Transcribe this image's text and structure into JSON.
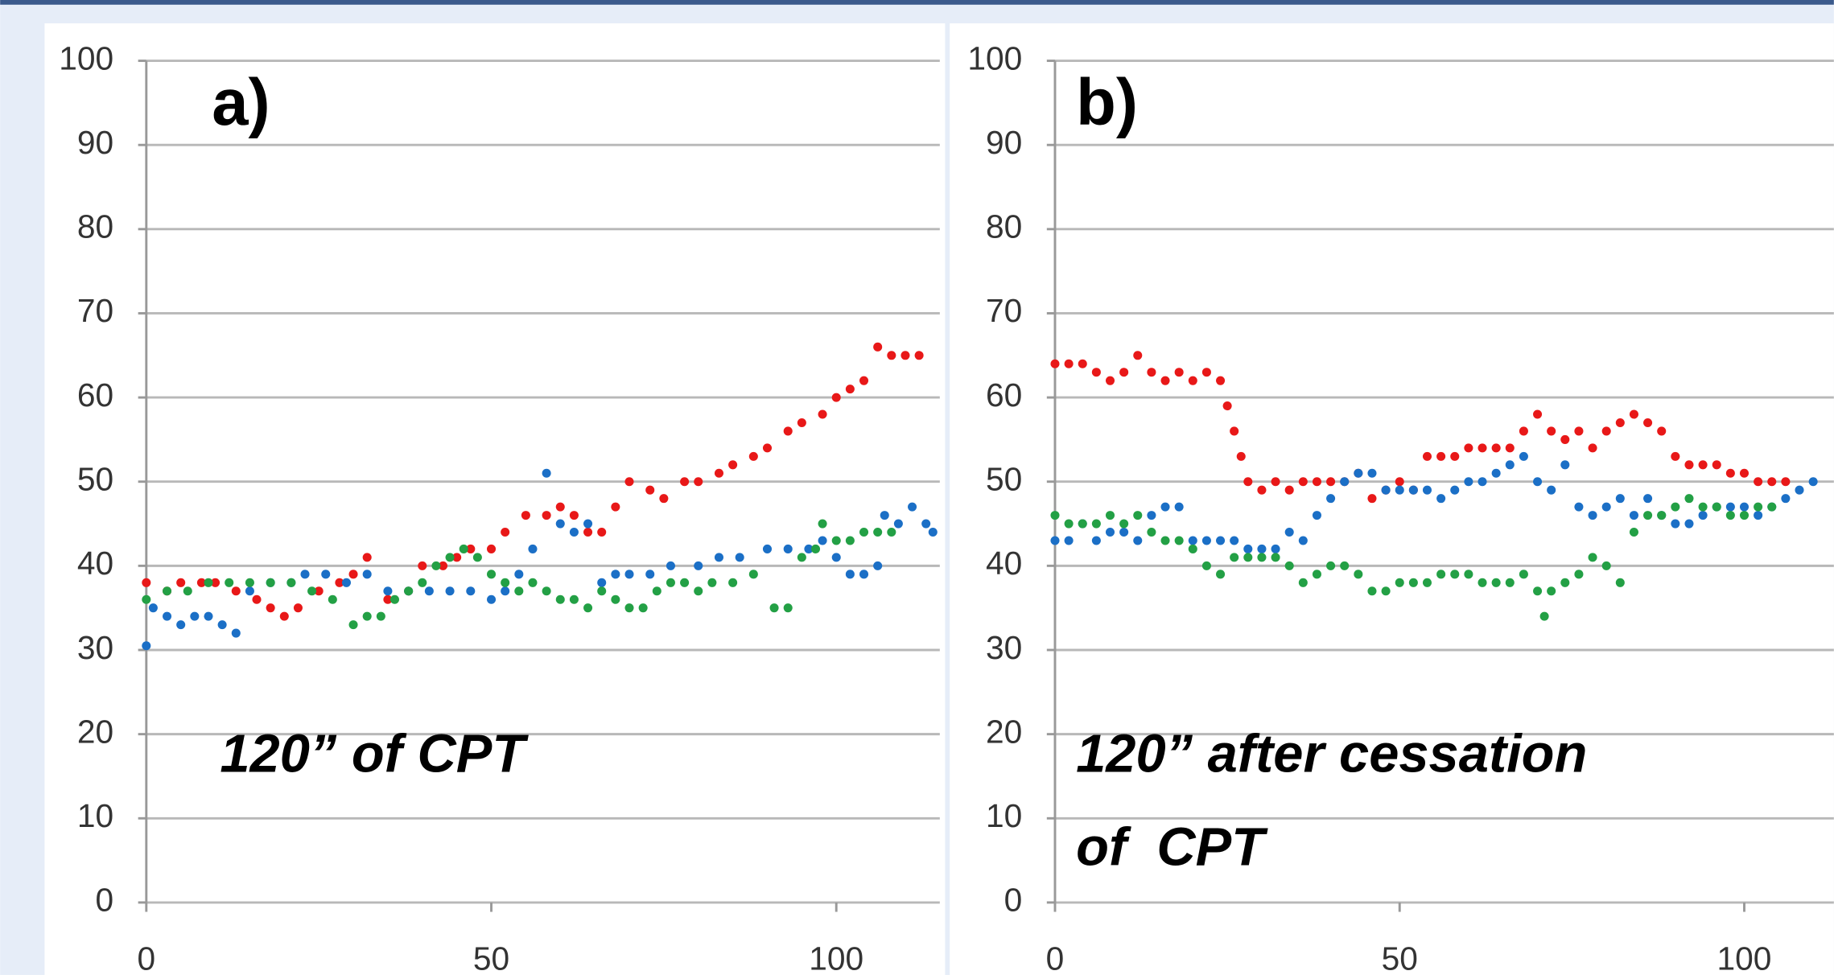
{
  "chart_data": [
    {
      "type": "scatter",
      "label": "a)",
      "note": [
        "120” of CPT"
      ],
      "xlim": [
        0,
        115
      ],
      "ylim": [
        0,
        100
      ],
      "xticks": [
        0,
        50,
        100
      ],
      "yticks": [
        0,
        10,
        20,
        30,
        40,
        50,
        60,
        70,
        80,
        90,
        100
      ],
      "grid": true,
      "series": [
        {
          "color": "#e81818",
          "x": [
            0,
            3,
            5,
            8,
            10,
            13,
            16,
            18,
            20,
            22,
            25,
            28,
            30,
            32,
            35,
            38,
            40,
            43,
            45,
            47,
            50,
            52,
            55,
            58,
            60,
            62,
            64,
            66,
            68,
            70,
            73,
            75,
            78,
            80,
            83,
            85,
            88,
            90,
            93,
            95,
            98,
            100,
            102,
            104,
            106,
            108,
            110,
            112
          ],
          "values": [
            38,
            37,
            38,
            38,
            38,
            37,
            36,
            35,
            34,
            35,
            37,
            38,
            39,
            41,
            36,
            37,
            40,
            40,
            41,
            42,
            42,
            44,
            46,
            46,
            47,
            46,
            44,
            44,
            47,
            50,
            49,
            48,
            50,
            50,
            51,
            52,
            53,
            54,
            56,
            57,
            58,
            60,
            61,
            62,
            66,
            65,
            65,
            65
          ]
        },
        {
          "color": "#1b6fc6",
          "x": [
            0,
            1,
            3,
            5,
            7,
            9,
            11,
            13,
            15,
            18,
            21,
            23,
            26,
            29,
            32,
            35,
            38,
            41,
            44,
            47,
            50,
            52,
            54,
            56,
            58,
            60,
            62,
            64,
            66,
            68,
            70,
            73,
            76,
            80,
            83,
            86,
            90,
            93,
            96,
            98,
            100,
            102,
            104,
            106,
            107,
            109,
            111,
            113,
            114
          ],
          "values": [
            30.5,
            35,
            34,
            33,
            34,
            34,
            33,
            32,
            37,
            38,
            38,
            39,
            39,
            38,
            39,
            37,
            37,
            37,
            37,
            37,
            36,
            37,
            39,
            42,
            51,
            45,
            44,
            45,
            38,
            39,
            39,
            39,
            40,
            40,
            41,
            41,
            42,
            42,
            42,
            43,
            41,
            39,
            39,
            40,
            46,
            45,
            47,
            45,
            44
          ]
        },
        {
          "color": "#23a045",
          "x": [
            0,
            3,
            6,
            9,
            12,
            15,
            18,
            21,
            24,
            27,
            30,
            32,
            34,
            36,
            38,
            40,
            42,
            44,
            46,
            48,
            50,
            52,
            54,
            56,
            58,
            60,
            62,
            64,
            66,
            68,
            70,
            72,
            74,
            76,
            78,
            80,
            82,
            85,
            88,
            91,
            93,
            95,
            97,
            98,
            100,
            102,
            104,
            106,
            108
          ],
          "values": [
            36,
            37,
            37,
            38,
            38,
            38,
            38,
            38,
            37,
            36,
            33,
            34,
            34,
            36,
            37,
            38,
            40,
            41,
            42,
            41,
            39,
            38,
            37,
            38,
            37,
            36,
            36,
            35,
            37,
            36,
            35,
            35,
            37,
            38,
            38,
            37,
            38,
            38,
            39,
            35,
            35,
            41,
            42,
            45,
            43,
            43,
            44,
            44,
            44
          ]
        }
      ]
    },
    {
      "type": "scatter",
      "label": "b)",
      "note": [
        "120” after cessation",
        "of  CPT"
      ],
      "xlim": [
        0,
        113
      ],
      "ylim": [
        0,
        100
      ],
      "xticks": [
        0,
        50,
        100
      ],
      "yticks": [
        0,
        10,
        20,
        30,
        40,
        50,
        60,
        70,
        80,
        90,
        100
      ],
      "grid": true,
      "series": [
        {
          "color": "#e81818",
          "x": [
            0,
            2,
            4,
            6,
            8,
            10,
            12,
            14,
            16,
            18,
            20,
            22,
            24,
            25,
            26,
            27,
            28,
            30,
            32,
            34,
            36,
            38,
            40,
            42,
            44,
            46,
            48,
            50,
            52,
            54,
            56,
            58,
            60,
            62,
            64,
            66,
            68,
            70,
            72,
            74,
            76,
            78,
            80,
            82,
            84,
            86,
            88,
            90,
            92,
            94,
            96,
            98,
            100,
            102,
            104,
            106
          ],
          "values": [
            64,
            64,
            64,
            63,
            62,
            63,
            65,
            63,
            62,
            63,
            62,
            63,
            62,
            59,
            56,
            53,
            50,
            49,
            50,
            49,
            50,
            50,
            50,
            50,
            51,
            48,
            49,
            50,
            49,
            53,
            53,
            53,
            54,
            54,
            54,
            54,
            56,
            58,
            56,
            55,
            56,
            54,
            56,
            57,
            58,
            57,
            56,
            53,
            52,
            52,
            52,
            51,
            51,
            50,
            50,
            50
          ]
        },
        {
          "color": "#1b6fc6",
          "x": [
            0,
            2,
            4,
            6,
            8,
            10,
            12,
            14,
            16,
            18,
            20,
            22,
            24,
            26,
            28,
            30,
            32,
            34,
            36,
            38,
            40,
            42,
            44,
            46,
            48,
            50,
            52,
            54,
            56,
            58,
            60,
            62,
            64,
            66,
            68,
            70,
            72,
            74,
            76,
            78,
            80,
            82,
            84,
            86,
            88,
            90,
            92,
            94,
            96,
            98,
            100,
            102,
            104,
            106,
            108,
            110
          ],
          "values": [
            43,
            43,
            45,
            43,
            44,
            44,
            43,
            46,
            47,
            47,
            43,
            43,
            43,
            43,
            42,
            42,
            42,
            44,
            43,
            46,
            48,
            50,
            51,
            51,
            49,
            49,
            49,
            49,
            48,
            49,
            50,
            50,
            51,
            52,
            53,
            50,
            49,
            52,
            47,
            46,
            47,
            48,
            46,
            48,
            46,
            45,
            45,
            46,
            47,
            47,
            47,
            46,
            47,
            48,
            49,
            50
          ]
        },
        {
          "color": "#23a045",
          "x": [
            0,
            2,
            4,
            6,
            8,
            10,
            12,
            14,
            16,
            18,
            20,
            22,
            24,
            26,
            28,
            30,
            32,
            34,
            36,
            38,
            40,
            42,
            44,
            46,
            48,
            50,
            52,
            54,
            56,
            58,
            60,
            62,
            64,
            66,
            68,
            70,
            71,
            72,
            74,
            76,
            78,
            80,
            82,
            84,
            86,
            88,
            90,
            92,
            94,
            96,
            98,
            100,
            102,
            104
          ],
          "values": [
            46,
            45,
            45,
            45,
            46,
            45,
            46,
            44,
            43,
            43,
            42,
            40,
            39,
            41,
            41,
            41,
            41,
            40,
            38,
            39,
            40,
            40,
            39,
            37,
            37,
            38,
            38,
            38,
            39,
            39,
            39,
            38,
            38,
            38,
            39,
            37,
            34,
            37,
            38,
            39,
            41,
            40,
            38,
            44,
            46,
            46,
            47,
            48,
            47,
            47,
            46,
            46,
            47,
            47
          ]
        }
      ]
    }
  ]
}
